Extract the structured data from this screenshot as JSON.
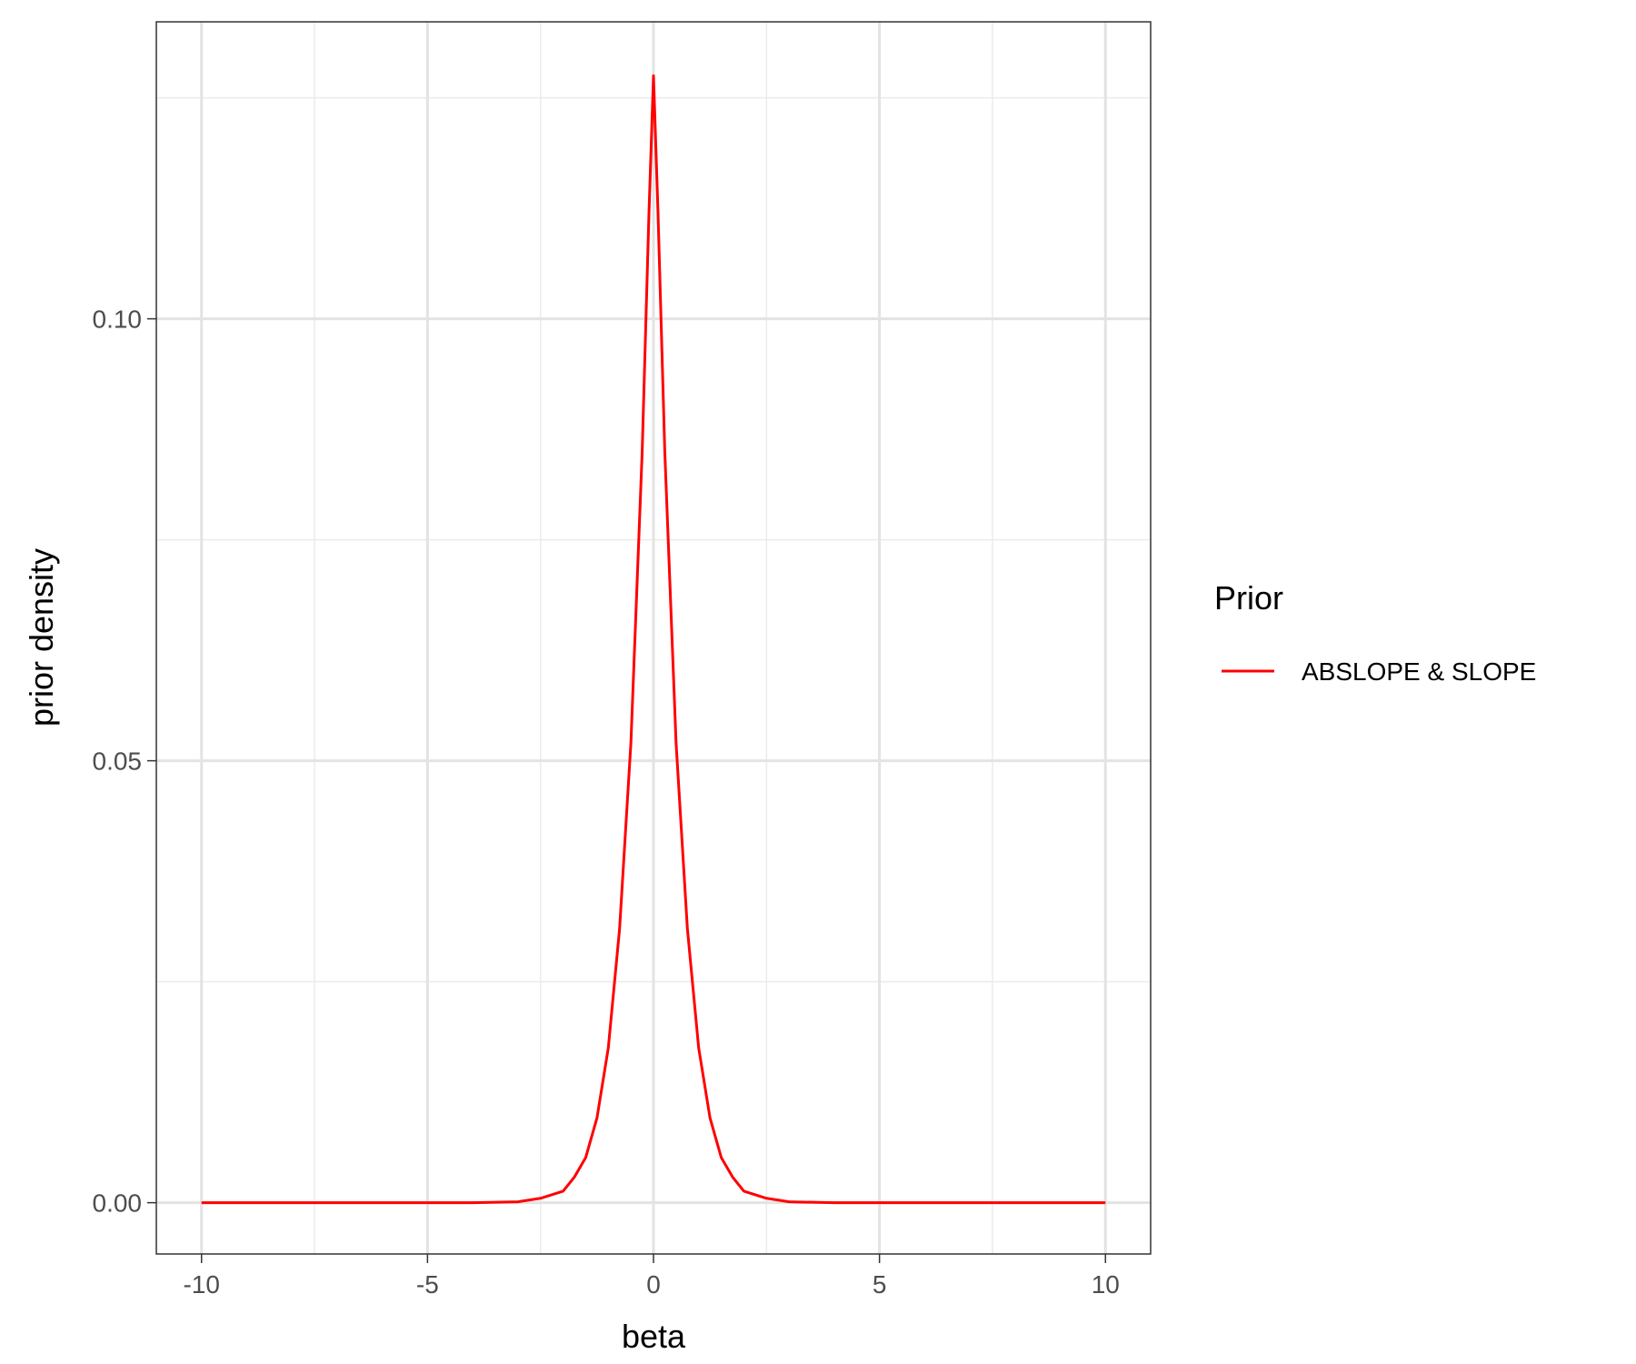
{
  "chart_data": {
    "type": "line",
    "xlabel": "beta",
    "ylabel": "prior density",
    "xlim": [
      -11,
      11
    ],
    "ylim": [
      -0.0058,
      0.1336
    ],
    "x_ticks": [
      -10,
      -5,
      0,
      5,
      10
    ],
    "x_tick_labels": [
      "-10",
      "-5",
      "0",
      "5",
      "10"
    ],
    "y_ticks": [
      0.0,
      0.05,
      0.1
    ],
    "y_tick_labels": [
      "0.00",
      "0.05",
      "0.10"
    ],
    "x_minor_ticks": [
      -7.5,
      -2.5,
      2.5,
      7.5
    ],
    "y_minor_ticks": [
      0.025,
      0.075,
      0.125
    ],
    "grid": true,
    "legend": {
      "title": "Prior",
      "placement": "right",
      "entries": [
        {
          "label": "ABSLOPE & SLOPE",
          "color": "#ff0000"
        }
      ]
    },
    "series": [
      {
        "name": "ABSLOPE & SLOPE",
        "color": "#ff0000",
        "points": [
          [
            -10,
            0.0
          ],
          [
            -5,
            0.0
          ],
          [
            -4,
            0.0
          ],
          [
            -3,
            0.0001
          ],
          [
            -2.5,
            0.0005
          ],
          [
            -2,
            0.0013
          ],
          [
            -1.75,
            0.0029
          ],
          [
            -1.5,
            0.0051
          ],
          [
            -1.25,
            0.0096
          ],
          [
            -1,
            0.0175
          ],
          [
            -0.75,
            0.031
          ],
          [
            -0.5,
            0.052
          ],
          [
            -0.25,
            0.085
          ],
          [
            -0.1,
            0.112
          ],
          [
            0,
            0.1275
          ],
          [
            0.1,
            0.112
          ],
          [
            0.25,
            0.085
          ],
          [
            0.5,
            0.052
          ],
          [
            0.75,
            0.031
          ],
          [
            1,
            0.0175
          ],
          [
            1.25,
            0.0096
          ],
          [
            1.5,
            0.0051
          ],
          [
            1.75,
            0.0029
          ],
          [
            2,
            0.0013
          ],
          [
            2.5,
            0.0005
          ],
          [
            3,
            0.0001
          ],
          [
            4,
            0.0
          ],
          [
            5,
            0.0
          ],
          [
            10,
            0.0
          ]
        ]
      }
    ]
  }
}
